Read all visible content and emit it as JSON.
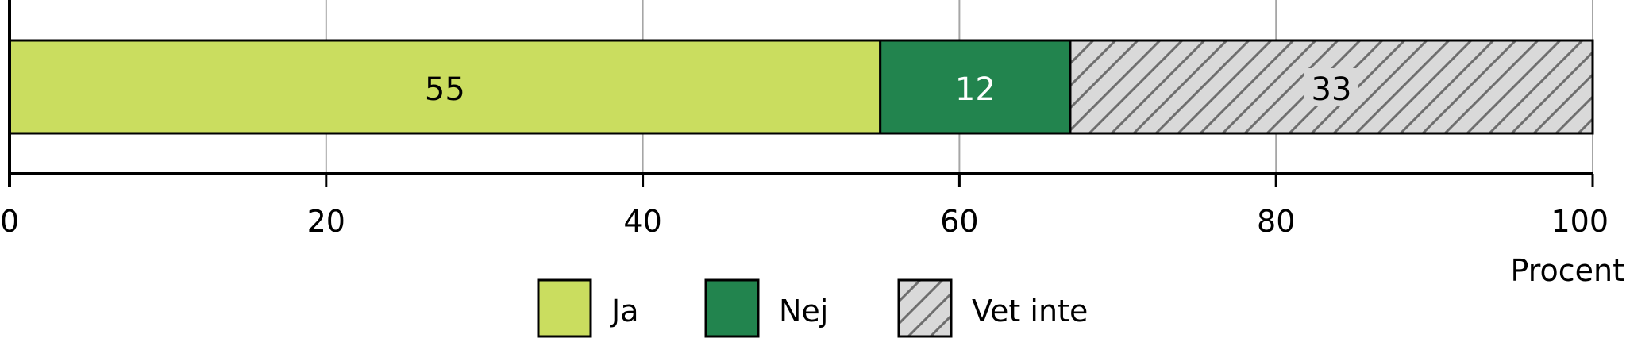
{
  "chart_data": {
    "type": "bar",
    "orientation": "horizontal",
    "stacked": true,
    "categories": [
      ""
    ],
    "series": [
      {
        "name": "Ja",
        "values": [
          55
        ],
        "color": "#cadd5f",
        "pattern": "solid"
      },
      {
        "name": "Nej",
        "values": [
          12
        ],
        "color": "#22844e",
        "pattern": "solid"
      },
      {
        "name": "Vet inte",
        "values": [
          33
        ],
        "color": "#d9d9d9",
        "pattern": "diagonal-hatch"
      }
    ],
    "data_labels": [
      "55",
      "12",
      "33"
    ],
    "xlabel": "Procent",
    "xlim": [
      0,
      100
    ],
    "xticks": [
      0,
      20,
      40,
      60,
      80,
      100
    ],
    "xtick_labels": [
      "0",
      "20",
      "40",
      "60",
      "80",
      "100"
    ],
    "grid": "vertical",
    "legend": {
      "placement": "bottom",
      "entries": [
        "Ja",
        "Nej",
        "Vet inte"
      ]
    }
  }
}
